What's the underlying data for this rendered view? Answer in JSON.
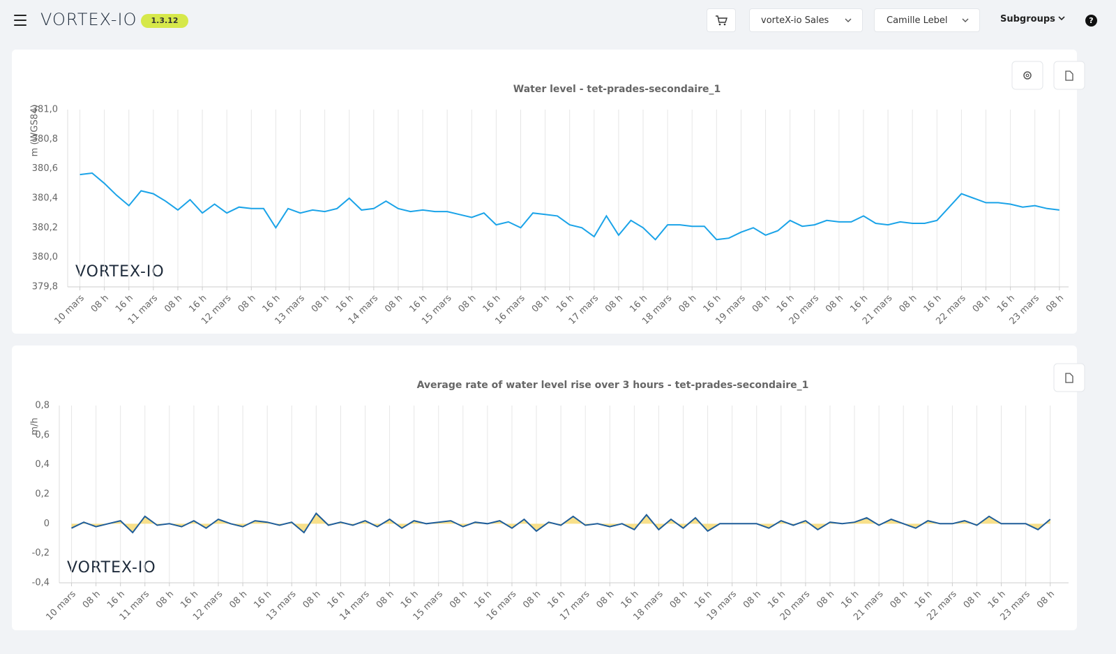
{
  "header": {
    "logo": "VORTEX-IO",
    "version": "1.3.12",
    "organization": "vorteX-io Sales",
    "user": "Camille Lebel",
    "subgroups": "Subgroups",
    "help": "?"
  },
  "chart_data": [
    {
      "type": "line",
      "title": "Water level - tet-prades-secondaire_1",
      "y_label": "m (WGS84)",
      "watermark": "VORTEX-IO",
      "color": "#1aa3e8",
      "x": [
        0,
        4,
        8,
        12,
        16,
        20,
        24,
        28,
        32,
        36,
        40,
        44,
        48,
        52,
        56,
        60,
        64,
        68,
        72,
        76,
        80,
        84,
        88,
        92,
        96,
        100,
        104,
        108,
        112,
        116,
        120,
        124,
        128,
        132,
        136,
        140,
        144,
        148,
        152,
        156,
        160,
        164,
        168,
        172,
        176,
        180,
        184,
        188,
        192,
        196,
        200,
        204,
        208,
        212,
        216,
        220,
        224,
        228,
        232,
        236,
        240,
        244,
        248,
        252,
        256,
        260,
        264,
        268,
        272,
        276,
        280,
        284,
        288,
        292,
        296,
        300,
        304,
        308,
        312,
        316,
        320
      ],
      "values": [
        380.56,
        380.57,
        380.5,
        380.42,
        380.35,
        380.45,
        380.43,
        380.38,
        380.32,
        380.39,
        380.3,
        380.36,
        380.3,
        380.34,
        380.33,
        380.33,
        380.2,
        380.33,
        380.3,
        380.32,
        380.31,
        380.33,
        380.4,
        380.32,
        380.33,
        380.38,
        380.33,
        380.31,
        380.32,
        380.31,
        380.31,
        380.29,
        380.27,
        380.3,
        380.22,
        380.24,
        380.2,
        380.3,
        380.29,
        380.28,
        380.22,
        380.2,
        380.14,
        380.28,
        380.15,
        380.25,
        380.2,
        380.12,
        380.22,
        380.22,
        380.21,
        380.21,
        380.12,
        380.13,
        380.17,
        380.2,
        380.15,
        380.18,
        380.25,
        380.21,
        380.22,
        380.25,
        380.24,
        380.24,
        380.28,
        380.23,
        380.22,
        380.24,
        380.23,
        380.23,
        380.25,
        380.34,
        380.43,
        380.4,
        380.37,
        380.37,
        380.36,
        380.34,
        380.35,
        380.33,
        380.32
      ],
      "xlim": [
        -4,
        323
      ],
      "ylim": [
        379.8,
        381.0
      ],
      "yticks": [
        {
          "value": 379.8,
          "label": "379,8"
        },
        {
          "value": 380.0,
          "label": "380,0"
        },
        {
          "value": 380.2,
          "label": "380,2"
        },
        {
          "value": 380.4,
          "label": "380,4"
        },
        {
          "value": 380.6,
          "label": "380,6"
        },
        {
          "value": 380.8,
          "label": "380,8"
        },
        {
          "value": 381.0,
          "label": "381,0"
        }
      ],
      "xticks": [
        {
          "value": 0,
          "label": "10 mars"
        },
        {
          "value": 8,
          "label": "08 h"
        },
        {
          "value": 16,
          "label": "16 h"
        },
        {
          "value": 24,
          "label": "11 mars"
        },
        {
          "value": 32,
          "label": "08 h"
        },
        {
          "value": 40,
          "label": "16 h"
        },
        {
          "value": 48,
          "label": "12 mars"
        },
        {
          "value": 56,
          "label": "08 h"
        },
        {
          "value": 64,
          "label": "16 h"
        },
        {
          "value": 72,
          "label": "13 mars"
        },
        {
          "value": 80,
          "label": "08 h"
        },
        {
          "value": 88,
          "label": "16 h"
        },
        {
          "value": 96,
          "label": "14 mars"
        },
        {
          "value": 104,
          "label": "08 h"
        },
        {
          "value": 112,
          "label": "16 h"
        },
        {
          "value": 120,
          "label": "15 mars"
        },
        {
          "value": 128,
          "label": "08 h"
        },
        {
          "value": 136,
          "label": "16 h"
        },
        {
          "value": 144,
          "label": "16 mars"
        },
        {
          "value": 152,
          "label": "08 h"
        },
        {
          "value": 160,
          "label": "16 h"
        },
        {
          "value": 168,
          "label": "17 mars"
        },
        {
          "value": 176,
          "label": "08 h"
        },
        {
          "value": 184,
          "label": "16 h"
        },
        {
          "value": 192,
          "label": "18 mars"
        },
        {
          "value": 200,
          "label": "08 h"
        },
        {
          "value": 208,
          "label": "16 h"
        },
        {
          "value": 216,
          "label": "19 mars"
        },
        {
          "value": 224,
          "label": "08 h"
        },
        {
          "value": 232,
          "label": "16 h"
        },
        {
          "value": 240,
          "label": "20 mars"
        },
        {
          "value": 248,
          "label": "08 h"
        },
        {
          "value": 256,
          "label": "16 h"
        },
        {
          "value": 264,
          "label": "21 mars"
        },
        {
          "value": 272,
          "label": "08 h"
        },
        {
          "value": 280,
          "label": "16 h"
        },
        {
          "value": 288,
          "label": "22 mars"
        },
        {
          "value": 296,
          "label": "08 h"
        },
        {
          "value": 304,
          "label": "16 h"
        },
        {
          "value": 312,
          "label": "23 mars"
        },
        {
          "value": 320,
          "label": "08 h"
        }
      ],
      "grid": "x"
    },
    {
      "type": "area",
      "title": "Average rate of water level rise over 3 hours - tet-prades-secondaire_1",
      "y_label": "m/h",
      "watermark": "VORTEX-IO",
      "color": "#1f5d99",
      "fill": "#f8e08a",
      "x": [
        0,
        4,
        8,
        12,
        16,
        20,
        24,
        28,
        32,
        36,
        40,
        44,
        48,
        52,
        56,
        60,
        64,
        68,
        72,
        76,
        80,
        84,
        88,
        92,
        96,
        100,
        104,
        108,
        112,
        116,
        120,
        124,
        128,
        132,
        136,
        140,
        144,
        148,
        152,
        156,
        160,
        164,
        168,
        172,
        176,
        180,
        184,
        188,
        192,
        196,
        200,
        204,
        208,
        212,
        216,
        220,
        224,
        228,
        232,
        236,
        240,
        244,
        248,
        252,
        256,
        260,
        264,
        268,
        272,
        276,
        280,
        284,
        288,
        292,
        296,
        300,
        304,
        308,
        312,
        316,
        320
      ],
      "values": [
        -0.03,
        0.01,
        -0.02,
        0.0,
        0.02,
        -0.06,
        0.05,
        -0.01,
        0.0,
        -0.02,
        0.02,
        -0.03,
        0.03,
        0.0,
        -0.02,
        0.02,
        0.01,
        -0.01,
        0.01,
        -0.06,
        0.07,
        -0.01,
        0.01,
        -0.01,
        0.02,
        -0.02,
        0.03,
        -0.03,
        0.02,
        0.0,
        0.01,
        0.02,
        -0.02,
        0.01,
        0.0,
        0.02,
        -0.03,
        0.03,
        -0.05,
        0.01,
        -0.01,
        0.05,
        -0.01,
        0.0,
        -0.02,
        0.0,
        -0.04,
        0.06,
        -0.04,
        0.03,
        -0.03,
        0.04,
        -0.05,
        0.0,
        0.0,
        0.0,
        0.0,
        -0.03,
        0.02,
        -0.01,
        0.02,
        -0.04,
        0.01,
        0.0,
        0.01,
        0.04,
        -0.01,
        0.03,
        0.0,
        -0.03,
        0.02,
        0.0,
        0.0,
        0.02,
        -0.01,
        0.05,
        0.0,
        0.0,
        0.0,
        -0.04,
        0.03
      ],
      "xlim": [
        -4,
        326
      ],
      "ylim": [
        -0.4,
        0.8
      ],
      "yticks": [
        {
          "value": -0.4,
          "label": "-0,4"
        },
        {
          "value": -0.2,
          "label": "-0,2"
        },
        0,
        {
          "value": 0.2,
          "label": "0,2"
        },
        {
          "value": 0.4,
          "label": "0,4"
        },
        {
          "value": 0.6,
          "label": "0,6"
        },
        {
          "value": 0.8,
          "label": "0,8"
        }
      ],
      "xticks": [
        {
          "value": 0,
          "label": "10 mars"
        },
        {
          "value": 8,
          "label": "08 h"
        },
        {
          "value": 16,
          "label": "16 h"
        },
        {
          "value": 24,
          "label": "11 mars"
        },
        {
          "value": 32,
          "label": "08 h"
        },
        {
          "value": 40,
          "label": "16 h"
        },
        {
          "value": 48,
          "label": "12 mars"
        },
        {
          "value": 56,
          "label": "08 h"
        },
        {
          "value": 64,
          "label": "16 h"
        },
        {
          "value": 72,
          "label": "13 mars"
        },
        {
          "value": 80,
          "label": "08 h"
        },
        {
          "value": 88,
          "label": "16 h"
        },
        {
          "value": 96,
          "label": "14 mars"
        },
        {
          "value": 104,
          "label": "08 h"
        },
        {
          "value": 112,
          "label": "16 h"
        },
        {
          "value": 120,
          "label": "15 mars"
        },
        {
          "value": 128,
          "label": "08 h"
        },
        {
          "value": 136,
          "label": "16 h"
        },
        {
          "value": 144,
          "label": "16 mars"
        },
        {
          "value": 152,
          "label": "08 h"
        },
        {
          "value": 160,
          "label": "16 h"
        },
        {
          "value": 168,
          "label": "17 mars"
        },
        {
          "value": 176,
          "label": "08 h"
        },
        {
          "value": 184,
          "label": "16 h"
        },
        {
          "value": 192,
          "label": "18 mars"
        },
        {
          "value": 200,
          "label": "08 h"
        },
        {
          "value": 208,
          "label": "16 h"
        },
        {
          "value": 216,
          "label": "19 mars"
        },
        {
          "value": 224,
          "label": "08 h"
        },
        {
          "value": 232,
          "label": "16 h"
        },
        {
          "value": 240,
          "label": "20 mars"
        },
        {
          "value": 248,
          "label": "08 h"
        },
        {
          "value": 256,
          "label": "16 h"
        },
        {
          "value": 264,
          "label": "21 mars"
        },
        {
          "value": 272,
          "label": "08 h"
        },
        {
          "value": 280,
          "label": "16 h"
        },
        {
          "value": 288,
          "label": "22 mars"
        },
        {
          "value": 296,
          "label": "08 h"
        },
        {
          "value": 304,
          "label": "16 h"
        },
        {
          "value": 312,
          "label": "23 mars"
        },
        {
          "value": 320,
          "label": "08 h"
        }
      ],
      "grid": "x"
    }
  ]
}
